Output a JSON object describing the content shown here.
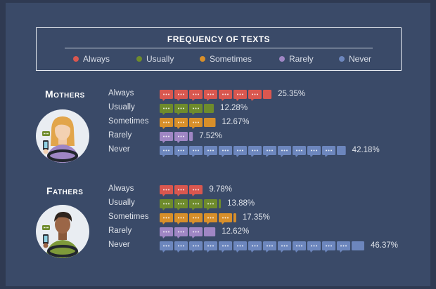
{
  "chart_data": {
    "type": "bar",
    "title": "FREQUENCY OF TEXTS",
    "legend": {
      "placement": "top",
      "entries": [
        {
          "name": "Always",
          "color": "#d9574f"
        },
        {
          "name": "Usually",
          "color": "#6e8b2c"
        },
        {
          "name": "Sometimes",
          "color": "#d88f2a"
        },
        {
          "name": "Rarely",
          "color": "#9f86c4"
        },
        {
          "name": "Never",
          "color": "#6c86bd"
        }
      ]
    },
    "categories": [
      "Always",
      "Usually",
      "Sometimes",
      "Rarely",
      "Never"
    ],
    "groups": [
      {
        "name": "Mothers",
        "avatar_icon": "mother-texting-driver-icon",
        "values": [
          25.35,
          12.28,
          12.67,
          7.52,
          42.18
        ],
        "labels": [
          "25.35%",
          "12.28%",
          "12.67%",
          "7.52%",
          "42.18%"
        ]
      },
      {
        "name": "Fathers",
        "avatar_icon": "father-texting-driver-icon",
        "values": [
          9.78,
          13.88,
          17.35,
          12.62,
          46.37
        ],
        "labels": [
          "9.78%",
          "13.88%",
          "17.35%",
          "12.62%",
          "46.37%"
        ]
      }
    ],
    "xlim": [
      0,
      50
    ],
    "grid": false
  }
}
